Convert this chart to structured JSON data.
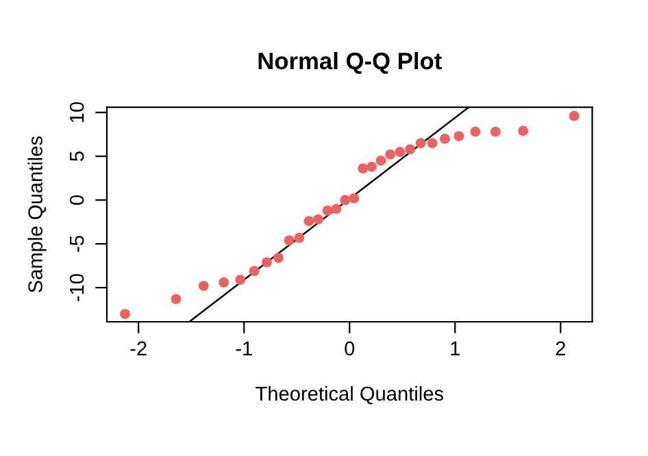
{
  "chart_data": {
    "type": "scatter",
    "title": "Normal Q-Q Plot",
    "xlabel": "Theoretical Quantiles",
    "ylabel": "Sample Quantiles",
    "xlim": [
      -2.3,
      2.3
    ],
    "ylim": [
      -13.9,
      10.6
    ],
    "xticks": [
      -2,
      -1,
      0,
      1,
      2
    ],
    "yticks": [
      -10,
      -5,
      0,
      5,
      10
    ],
    "grid": false,
    "legend": false,
    "series": [
      {
        "marker": "circle",
        "color": "#f06060",
        "x": [
          -2.128,
          -1.645,
          -1.383,
          -1.192,
          -1.036,
          -0.903,
          -0.784,
          -0.674,
          -0.573,
          -0.477,
          -0.385,
          -0.297,
          -0.21,
          -0.126,
          -0.042,
          0.042,
          0.126,
          0.21,
          0.297,
          0.385,
          0.477,
          0.573,
          0.674,
          0.784,
          0.903,
          1.036,
          1.192,
          1.383,
          1.645,
          2.128
        ],
        "values": [
          -13.0,
          -11.3,
          -9.8,
          -9.4,
          -9.1,
          -8.1,
          -7.1,
          -6.6,
          -4.6,
          -4.3,
          -2.4,
          -2.2,
          -1.2,
          -1.0,
          0.0,
          0.2,
          3.6,
          3.8,
          4.5,
          5.2,
          5.5,
          5.8,
          6.5,
          6.5,
          7.0,
          7.3,
          7.8,
          7.8,
          7.9,
          9.6
        ]
      },
      {
        "type": "line",
        "marker": "none",
        "color": "#000000",
        "x": [
          -1.519,
          1.13
        ],
        "values": [
          -13.9,
          10.6
        ]
      }
    ]
  }
}
